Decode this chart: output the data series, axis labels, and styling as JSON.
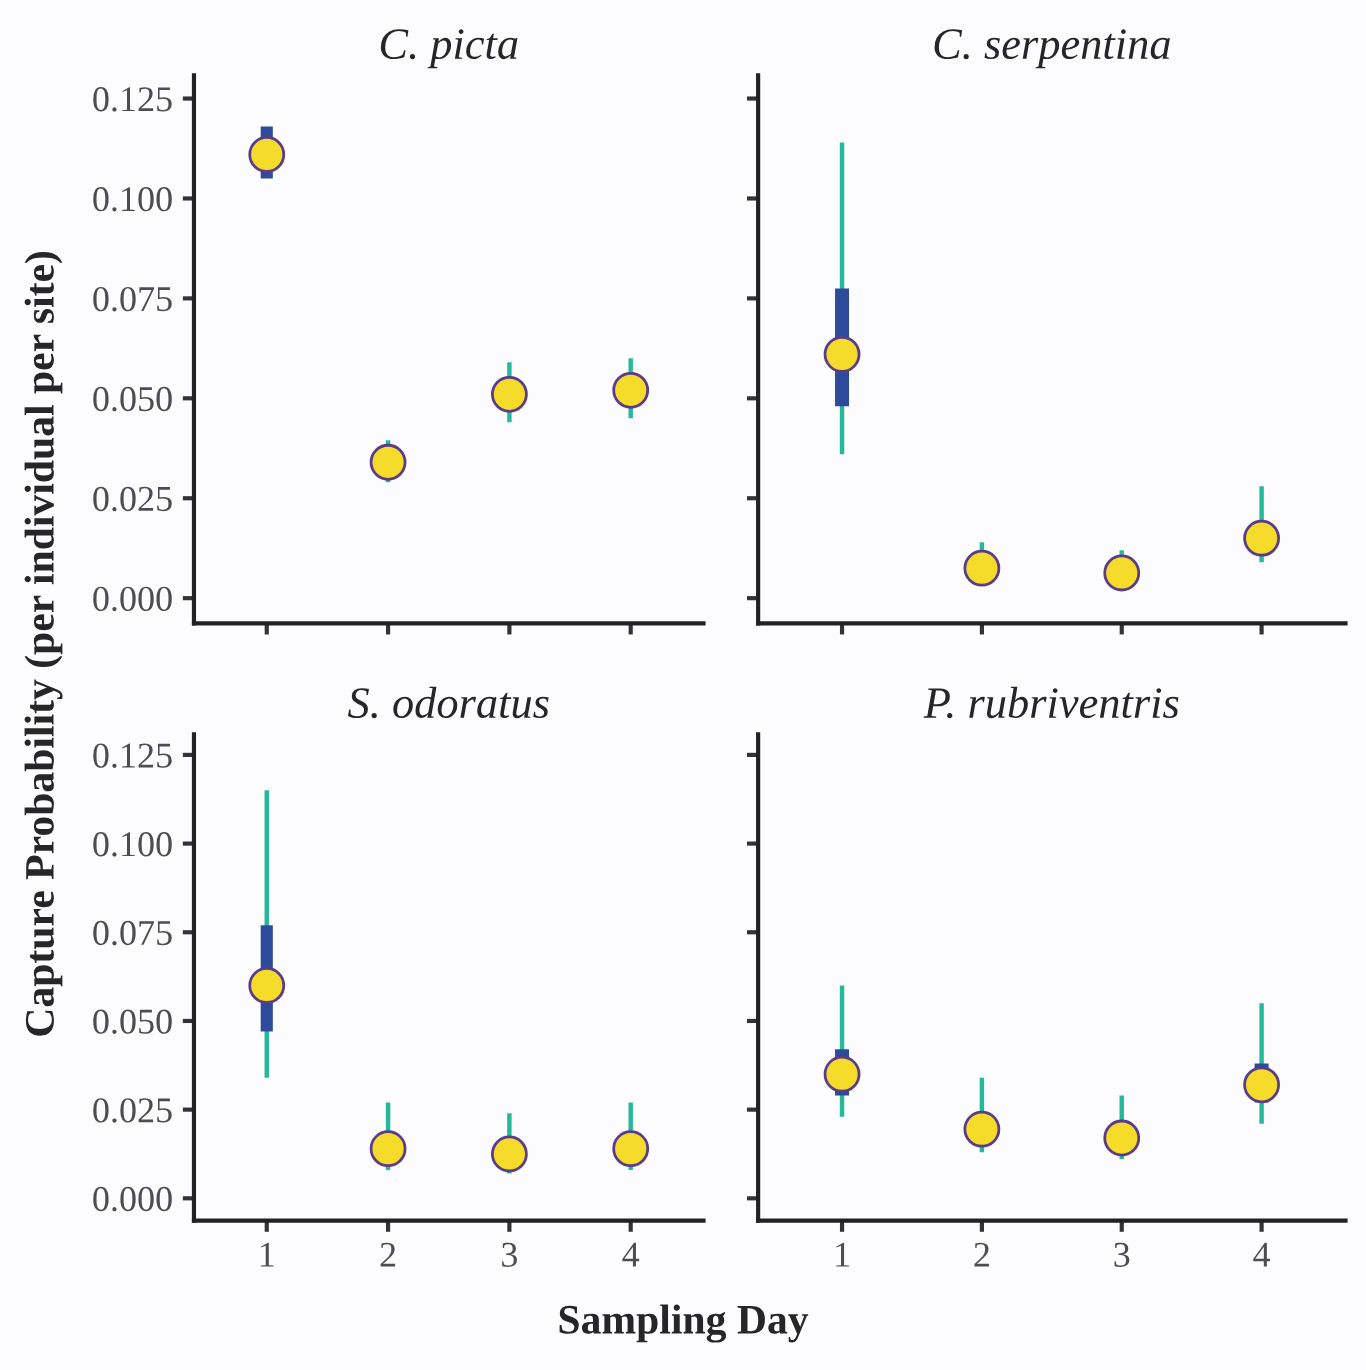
{
  "chart_data": [
    {
      "type": "scatter",
      "title": "C. picta",
      "ylabel": "Capture Probability (per individual per site)",
      "categories": [
        "1",
        "2",
        "3",
        "4"
      ],
      "ylim": [
        -0.0063,
        0.1308
      ],
      "yticks": [
        {
          "value": 0,
          "label": "0.000"
        },
        {
          "value": 0.025,
          "label": "0.025"
        },
        {
          "value": 0.05,
          "label": "0.050"
        },
        {
          "value": 0.075,
          "label": "0.075"
        },
        {
          "value": 0.1,
          "label": "0.100"
        },
        {
          "value": 0.125,
          "label": "0.125"
        }
      ],
      "tick_labels": "y",
      "grid": false,
      "legend": false,
      "series": [
        {
          "type": "bar",
          "color": "#2e4a9a",
          "base": [
            0.105,
            null,
            null,
            null
          ],
          "values": [
            0.013,
            null,
            null,
            null
          ]
        },
        {
          "type": "scatter",
          "color": "#f5dc2a",
          "marker": "circle",
          "values": [
            0.111,
            0.034,
            0.051,
            0.052
          ],
          "errors": [
            null,
            [
              0.029,
              0.0395
            ],
            [
              0.044,
              0.059
            ],
            [
              0.045,
              0.06
            ]
          ]
        }
      ]
    },
    {
      "type": "scatter",
      "title": "C. serpentina",
      "categories": [
        "1",
        "2",
        "3",
        "4"
      ],
      "ylim": [
        -0.0063,
        0.1308
      ],
      "yticks": [
        {
          "value": 0,
          "label": null
        },
        {
          "value": 0.025,
          "label": null
        },
        {
          "value": 0.05,
          "label": null
        },
        {
          "value": 0.075,
          "label": null
        },
        {
          "value": 0.1,
          "label": null
        },
        {
          "value": 0.125,
          "label": null
        }
      ],
      "tick_labels": false,
      "grid": false,
      "legend": false,
      "series": [
        {
          "type": "bar",
          "color": "#2e4a9a",
          "base": [
            0.048,
            null,
            null,
            null
          ],
          "values": [
            0.0295,
            null,
            null,
            null
          ]
        },
        {
          "type": "scatter",
          "color": "#f5dc2a",
          "marker": "circle",
          "values": [
            0.061,
            0.0075,
            0.0063,
            0.015
          ],
          "errors": [
            [
              0.036,
              0.114
            ],
            [
              0.005,
              0.014
            ],
            [
              0.004,
              0.012
            ],
            [
              0.009,
              0.028
            ]
          ]
        }
      ]
    },
    {
      "type": "scatter",
      "title": "S. odoratus",
      "xlabel": "Sampling Day",
      "categories": [
        "1",
        "2",
        "3",
        "4"
      ],
      "ylim": [
        -0.0063,
        0.1308
      ],
      "yticks": [
        {
          "value": 0,
          "label": "0.000"
        },
        {
          "value": 0.025,
          "label": "0.025"
        },
        {
          "value": 0.05,
          "label": "0.050"
        },
        {
          "value": 0.075,
          "label": "0.075"
        },
        {
          "value": 0.1,
          "label": "0.100"
        },
        {
          "value": 0.125,
          "label": "0.125"
        }
      ],
      "grid": false,
      "legend": false,
      "series": [
        {
          "type": "bar",
          "color": "#2e4a9a",
          "base": [
            0.047,
            null,
            null,
            null
          ],
          "values": [
            0.03,
            null,
            null,
            null
          ]
        },
        {
          "type": "scatter",
          "color": "#f5dc2a",
          "marker": "circle",
          "values": [
            0.06,
            0.014,
            0.0125,
            0.014
          ],
          "errors": [
            [
              0.034,
              0.115
            ],
            [
              0.008,
              0.027
            ],
            [
              0.007,
              0.024
            ],
            [
              0.008,
              0.027
            ]
          ]
        }
      ]
    },
    {
      "type": "scatter",
      "title": "P. rubriventris",
      "categories": [
        "1",
        "2",
        "3",
        "4"
      ],
      "ylim": [
        -0.0063,
        0.1308
      ],
      "yticks": [
        {
          "value": 0,
          "label": null
        },
        {
          "value": 0.025,
          "label": null
        },
        {
          "value": 0.05,
          "label": null
        },
        {
          "value": 0.075,
          "label": null
        },
        {
          "value": 0.1,
          "label": null
        },
        {
          "value": 0.125,
          "label": null
        }
      ],
      "tick_labels": "x",
      "grid": false,
      "legend": false,
      "series": [
        {
          "type": "bar",
          "color": "#2e4a9a",
          "base": [
            0.029,
            null,
            null,
            0.027
          ],
          "values": [
            0.013,
            null,
            null,
            0.011
          ]
        },
        {
          "type": "scatter",
          "color": "#f5dc2a",
          "marker": "circle",
          "values": [
            0.035,
            0.0195,
            0.017,
            0.032
          ],
          "errors": [
            [
              0.023,
              0.06
            ],
            [
              0.013,
              0.034
            ],
            [
              0.011,
              0.029
            ],
            [
              0.021,
              0.055
            ]
          ]
        }
      ]
    }
  ]
}
